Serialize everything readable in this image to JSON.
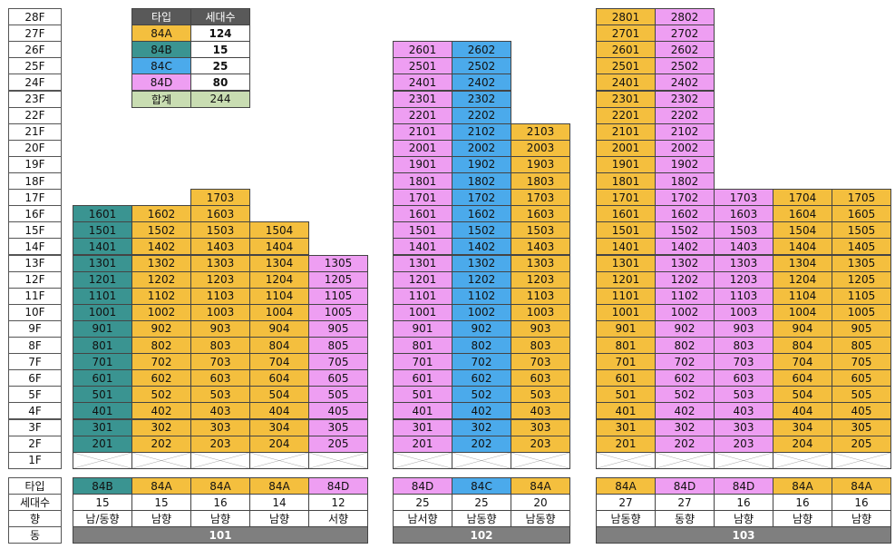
{
  "colors": {
    "84A": "#F4BF3E",
    "84B": "#3A9491",
    "84C": "#4BAAEB",
    "84D": "#EE9EF2",
    "total": "#C9DDB2",
    "header": "#595959",
    "dong": "#7F7F7F"
  },
  "floor_labels": [
    "28F",
    "27F",
    "26F",
    "25F",
    "24F",
    "23F",
    "22F",
    "21F",
    "20F",
    "19F",
    "18F",
    "17F",
    "16F",
    "15F",
    "14F",
    "13F",
    "12F",
    "11F",
    "10F",
    "9F",
    "8F",
    "7F",
    "6F",
    "5F",
    "4F",
    "3F",
    "2F",
    "1F"
  ],
  "legend": {
    "headers": [
      "타입",
      "세대수"
    ],
    "rows": [
      {
        "type": "84A",
        "count": "124"
      },
      {
        "type": "84B",
        "count": "15"
      },
      {
        "type": "84C",
        "count": "25"
      },
      {
        "type": "84D",
        "count": "80"
      }
    ],
    "total": {
      "label": "합계",
      "count": "244"
    }
  },
  "row_labels": {
    "type": "타입",
    "count": "세대수",
    "direction": "향",
    "dong": "동"
  },
  "buildings": [
    {
      "name": "101",
      "columns": [
        {
          "line": "01",
          "type": "84B",
          "floor_from": 2,
          "floor_to": 16,
          "count": "15",
          "direction": "남/동향"
        },
        {
          "line": "02",
          "type": "84A",
          "floor_from": 2,
          "floor_to": 16,
          "count": "15",
          "direction": "남향"
        },
        {
          "line": "03",
          "type": "84A",
          "floor_from": 2,
          "floor_to": 17,
          "count": "16",
          "direction": "남향"
        },
        {
          "line": "04",
          "type": "84A",
          "floor_from": 2,
          "floor_to": 15,
          "count": "14",
          "direction": "남향"
        },
        {
          "line": "05",
          "type": "84D",
          "floor_from": 2,
          "floor_to": 13,
          "count": "12",
          "direction": "서향"
        }
      ]
    },
    {
      "name": "102",
      "columns": [
        {
          "line": "01",
          "type": "84D",
          "floor_from": 2,
          "floor_to": 26,
          "count": "25",
          "direction": "남서향"
        },
        {
          "line": "02",
          "type": "84C",
          "floor_from": 2,
          "floor_to": 26,
          "count": "25",
          "direction": "남동향"
        },
        {
          "line": "03",
          "type": "84A",
          "floor_from": 2,
          "floor_to": 21,
          "count": "20",
          "direction": "남동향"
        }
      ]
    },
    {
      "name": "103",
      "columns": [
        {
          "line": "01",
          "type": "84A",
          "floor_from": 2,
          "floor_to": 28,
          "count": "27",
          "direction": "남동향"
        },
        {
          "line": "02",
          "type": "84D",
          "floor_from": 2,
          "floor_to": 28,
          "count": "27",
          "direction": "동향"
        },
        {
          "line": "03",
          "type": "84D",
          "floor_from": 2,
          "floor_to": 17,
          "count": "16",
          "direction": "남향"
        },
        {
          "line": "04",
          "type": "84A",
          "floor_from": 2,
          "floor_to": 17,
          "count": "16",
          "direction": "남향"
        },
        {
          "line": "05",
          "type": "84A",
          "floor_from": 2,
          "floor_to": 17,
          "count": "16",
          "direction": "남향"
        }
      ]
    }
  ]
}
